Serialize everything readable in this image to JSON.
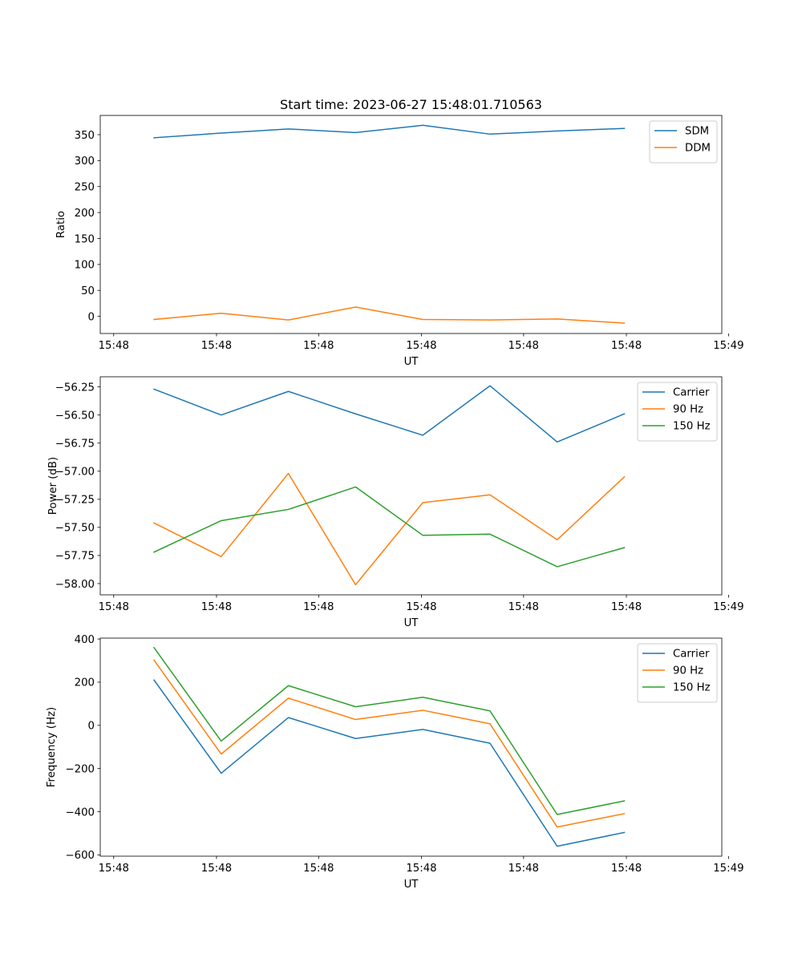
{
  "figure": {
    "title": "Start time: 2023-06-27 15:48:01.710563"
  },
  "chart_data": [
    {
      "type": "line",
      "xlabel": "UT",
      "ylabel": "Ratio",
      "x": [
        1,
        2,
        3,
        4,
        5,
        6,
        7,
        8
      ],
      "xlim": [
        0.2,
        9.45
      ],
      "x_ticks": [
        0.4,
        1.93,
        3.45,
        4.98,
        6.5,
        8.03,
        9.55
      ],
      "x_tick_labels": [
        "15:48",
        "15:48",
        "15:48",
        "15:48",
        "15:48",
        "15:48",
        "15:49"
      ],
      "ylim": [
        -33,
        387
      ],
      "y_ticks": [
        0,
        50,
        100,
        150,
        200,
        250,
        300,
        350
      ],
      "y_tick_labels": [
        "0",
        "50",
        "100",
        "150",
        "200",
        "250",
        "300",
        "350"
      ],
      "legend": "upper right",
      "series": [
        {
          "name": "SDM",
          "color": "#1f77b4",
          "values": [
            344,
            353,
            361,
            354,
            368,
            351,
            357,
            362
          ]
        },
        {
          "name": "DDM",
          "color": "#ff7f0e",
          "values": [
            -6,
            6,
            -7,
            18,
            -6,
            -7,
            -5,
            -13
          ]
        }
      ]
    },
    {
      "type": "line",
      "xlabel": "UT",
      "ylabel": "Power (dB)",
      "x": [
        1,
        2,
        3,
        4,
        5,
        6,
        7,
        8
      ],
      "xlim": [
        0.2,
        9.45
      ],
      "x_ticks": [
        0.4,
        1.93,
        3.45,
        4.98,
        6.5,
        8.03,
        9.55
      ],
      "x_tick_labels": [
        "15:48",
        "15:48",
        "15:48",
        "15:48",
        "15:48",
        "15:48",
        "15:49"
      ],
      "ylim": [
        -58.1,
        -56.16
      ],
      "y_ticks": [
        -58.0,
        -57.75,
        -57.5,
        -57.25,
        -57.0,
        -56.75,
        -56.5,
        -56.25
      ],
      "y_tick_labels": [
        "−58.00",
        "−57.75",
        "−57.50",
        "−57.25",
        "−57.00",
        "−56.75",
        "−56.50",
        "−56.25"
      ],
      "legend": "upper right",
      "series": [
        {
          "name": "Carrier",
          "color": "#1f77b4",
          "values": [
            -56.27,
            -56.5,
            -56.29,
            -56.49,
            -56.68,
            -56.24,
            -56.74,
            -56.49
          ]
        },
        {
          "name": "90 Hz",
          "color": "#ff7f0e",
          "values": [
            -57.46,
            -57.76,
            -57.02,
            -58.01,
            -57.28,
            -57.21,
            -57.61,
            -57.05
          ]
        },
        {
          "name": "150 Hz",
          "color": "#2ca02c",
          "values": [
            -57.72,
            -57.44,
            -57.34,
            -57.14,
            -57.57,
            -57.56,
            -57.85,
            -57.68
          ]
        }
      ]
    },
    {
      "type": "line",
      "xlabel": "UT",
      "ylabel": "Frequency (Hz)",
      "x": [
        1,
        2,
        3,
        4,
        5,
        6,
        7,
        8
      ],
      "xlim": [
        0.2,
        9.45
      ],
      "x_ticks": [
        0.4,
        1.93,
        3.45,
        4.98,
        6.5,
        8.03,
        9.55
      ],
      "x_tick_labels": [
        "15:48",
        "15:48",
        "15:48",
        "15:48",
        "15:48",
        "15:48",
        "15:49"
      ],
      "ylim": [
        -606,
        404
      ],
      "y_ticks": [
        -600,
        -400,
        -200,
        0,
        200,
        400
      ],
      "y_tick_labels": [
        "−600",
        "−400",
        "−200",
        "0",
        "200",
        "400"
      ],
      "legend": "upper right",
      "series": [
        {
          "name": "Carrier",
          "color": "#1f77b4",
          "values": [
            210,
            -222,
            36,
            -61,
            -19,
            -83,
            -560,
            -496
          ]
        },
        {
          "name": "90 Hz",
          "color": "#ff7f0e",
          "values": [
            302,
            -133,
            126,
            27,
            70,
            7,
            -471,
            -409
          ]
        },
        {
          "name": "150 Hz",
          "color": "#2ca02c",
          "values": [
            360,
            -73,
            184,
            86,
            130,
            67,
            -413,
            -350
          ]
        }
      ]
    }
  ]
}
